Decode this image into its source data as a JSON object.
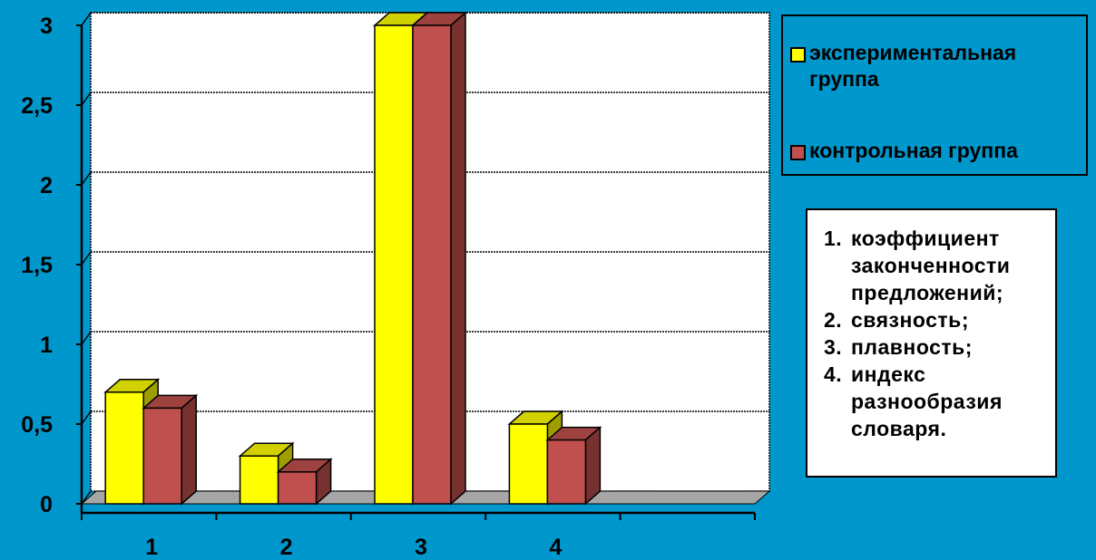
{
  "chart_data": {
    "type": "bar",
    "categories": [
      "1",
      "2",
      "3",
      "4",
      ""
    ],
    "series": [
      {
        "name": "экспериментальная группа",
        "color": "#ffff00",
        "values": [
          0.7,
          0.3,
          3.0,
          0.5,
          null
        ]
      },
      {
        "name": "контрольная группа",
        "color": "#c0504d",
        "values": [
          0.6,
          0.2,
          3.0,
          0.4,
          null
        ]
      }
    ],
    "ylim": [
      0,
      3
    ],
    "yticks": [
      "0",
      "0,5",
      "1",
      "1,5",
      "2",
      "2,5",
      "3"
    ],
    "grid": true,
    "legend_position": "top-right",
    "title": "",
    "xlabel": "",
    "ylabel": ""
  },
  "notes": [
    {
      "num": "1.",
      "text": "коэффициент законченности предложений;"
    },
    {
      "num": "2.",
      "text": "связность;"
    },
    {
      "num": "3.",
      "text": "плавность;"
    },
    {
      "num": "4.",
      "text": "индекс разнообразия словаря."
    }
  ],
  "colors": {
    "background": "#0097cc",
    "plot_area": "#ffffff",
    "floor": "#a6a6a6"
  }
}
